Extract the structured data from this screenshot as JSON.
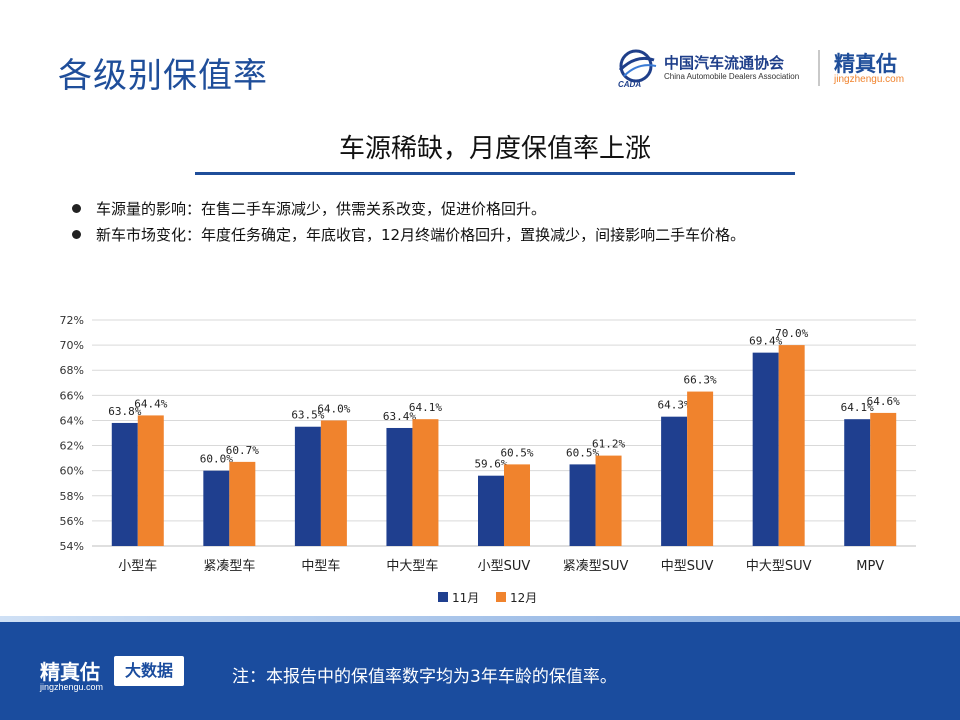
{
  "header": {
    "page_title": "各级别保值率",
    "association_cn": "中国汽车流通协会",
    "association_en": "China Automobile Dealers Association",
    "association_mark": "CADA",
    "brand": "精真估",
    "brand_url": "jingzhengu.com"
  },
  "headline": "车源稀缺，月度保值率上涨",
  "bullets": [
    "车源量的影响：在售二手车源减少，供需关系改变，促进价格回升。",
    "新车市场变化：年度任务确定，年底收官，12月终端价格回升，置换减少，间接影响二手车价格。"
  ],
  "footer": {
    "brand": "精真估",
    "brand_url": "jingzhengu.com",
    "badge": "大数据",
    "note": "注：本报告中的保值率数字均为3年车龄的保值率。"
  },
  "colors": {
    "nov": "#1f3f8f",
    "dec": "#f0832d",
    "accent": "#1f4e9a",
    "grid": "#d9d9d9"
  },
  "chart_data": {
    "type": "bar",
    "categories": [
      "小型车",
      "紧凑型车",
      "中型车",
      "中大型车",
      "小型SUV",
      "紧凑型SUV",
      "中型SUV",
      "中大型SUV",
      "MPV"
    ],
    "series": [
      {
        "name": "11月",
        "values": [
          63.8,
          60.0,
          63.5,
          63.4,
          59.6,
          60.5,
          64.3,
          69.4,
          64.1
        ]
      },
      {
        "name": "12月",
        "values": [
          64.4,
          60.7,
          64.0,
          64.1,
          60.5,
          61.2,
          66.3,
          70.0,
          64.6
        ]
      }
    ],
    "data_labels": [
      [
        "63.8%",
        "60.0%",
        "63.5%",
        "63.4%",
        "59.6%",
        "60.5%",
        "64.3%",
        "69.4%",
        "64.1%"
      ],
      [
        "64.4%",
        "60.7%",
        "64.0%",
        "64.1%",
        "60.5%",
        "61.2%",
        "66.3%",
        "70.0%",
        "64.6%"
      ]
    ],
    "y_ticks": [
      54,
      56,
      58,
      60,
      62,
      64,
      66,
      68,
      70,
      72
    ],
    "y_tick_labels": [
      "54%",
      "56%",
      "58%",
      "60%",
      "62%",
      "64%",
      "66%",
      "68%",
      "70%",
      "72%"
    ],
    "ylim": [
      54,
      72
    ],
    "grid": true,
    "legend_position": "bottom"
  }
}
